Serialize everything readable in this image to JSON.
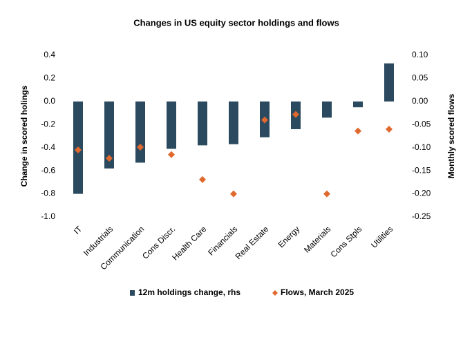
{
  "chart_data": {
    "type": "bar_scatter",
    "title": "Changes in US equity sector holdings and flows",
    "y_label": "Change in scored holings",
    "y2_label": "Monthly scored flows",
    "categories": [
      "IT",
      "Industrials",
      "Communication",
      "Cons Discr.",
      "Health Care",
      "Financials",
      "Real Estate",
      "Energy",
      "Materials",
      "Cons Stpls",
      "Utilities"
    ],
    "series": [
      {
        "name": "12m holdings change, rhs",
        "color": "#2b4a5f",
        "type": "bar",
        "values": [
          -0.8,
          -0.58,
          -0.53,
          -0.41,
          -0.38,
          -0.37,
          -0.31,
          -0.24,
          -0.14,
          -0.05,
          0.33
        ]
      },
      {
        "name": "Flows, March 2025",
        "color": "#e0692e",
        "type": "scatter",
        "axis": "y2",
        "values": [
          -0.105,
          -0.123,
          -0.099,
          -0.115,
          -0.169,
          -0.2,
          -0.04,
          -0.028,
          -0.2,
          -0.064,
          -0.06
        ]
      }
    ],
    "ylim": [
      -1.0,
      0.4
    ],
    "yticks": [
      0.4,
      0.2,
      {
        "value": 0,
        "label": "0.0"
      },
      -0.2,
      -0.4,
      -0.6,
      -0.8,
      {
        "value": -1,
        "label": "-1.0"
      }
    ],
    "y2lim": [
      -0.25,
      0.1
    ],
    "y2ticks": [
      {
        "value": 0.1,
        "label": "0.10"
      },
      {
        "value": 0.05,
        "label": "0.05"
      },
      {
        "value": 0,
        "label": "0.00"
      },
      {
        "value": -0.05,
        "label": "-0.05"
      },
      {
        "value": -0.1,
        "label": "-0.10"
      },
      {
        "value": -0.15,
        "label": "-0.15"
      },
      {
        "value": -0.2,
        "label": "-0.20"
      },
      {
        "value": -0.25,
        "label": "-0.25"
      }
    ]
  }
}
